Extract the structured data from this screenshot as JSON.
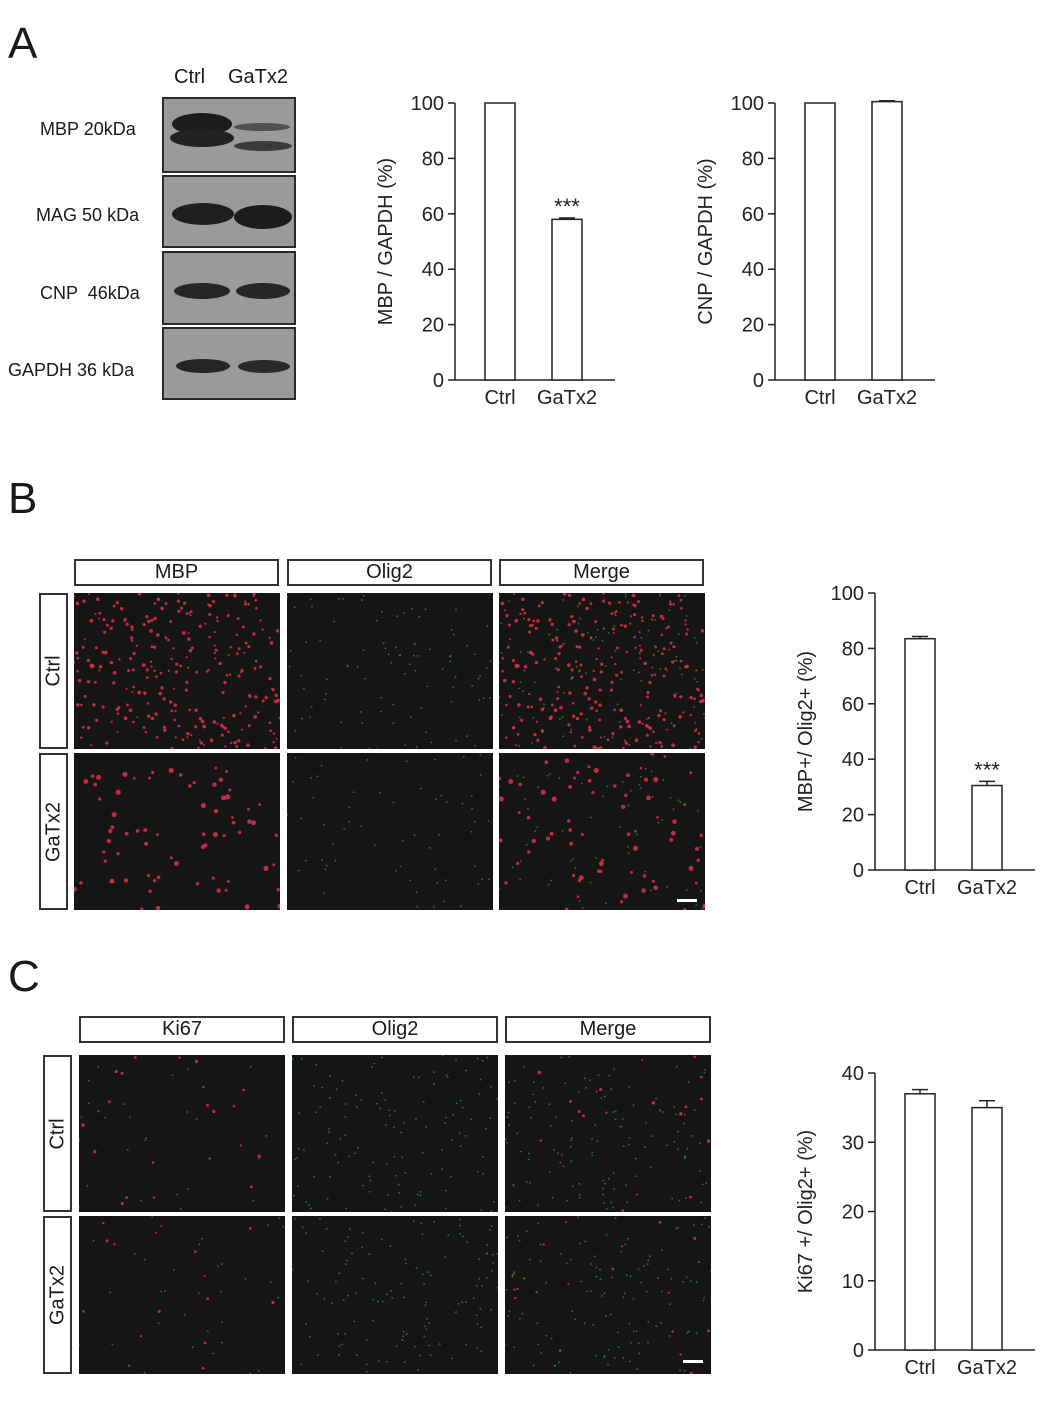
{
  "panels": {
    "a": "A",
    "b": "B",
    "c": "C"
  },
  "western_blot": {
    "lanes": [
      "Ctrl",
      "GaTx2"
    ],
    "rows": [
      {
        "protein": "MBP",
        "size": "20",
        "unit": "kDa"
      },
      {
        "protein": "MAG",
        "size": "50",
        "unit": "kDa"
      },
      {
        "protein": "CNP",
        "size": "46",
        "unit": "kDa"
      },
      {
        "protein": "GAPDH",
        "size": "36",
        "unit": "kDa"
      }
    ]
  },
  "micrographs_b": {
    "columns": [
      "MBP",
      "Olig2",
      "Merge"
    ],
    "rows": [
      "Ctrl",
      "GaTx2"
    ]
  },
  "micrographs_c": {
    "columns": [
      "Ki67",
      "Olig2",
      "Merge"
    ],
    "rows": [
      "Ctrl",
      "GaTx2"
    ]
  },
  "chart_data": [
    {
      "id": "mbp",
      "type": "bar",
      "categories": [
        "Ctrl",
        "GaTx2"
      ],
      "values": [
        100,
        58
      ],
      "errors": [
        0,
        0.5
      ],
      "annotations": [
        "",
        "***"
      ],
      "ylabel": "MBP / GAPDH (%)",
      "ylim": [
        0,
        100
      ],
      "yticks": [
        0,
        20,
        40,
        60,
        80,
        100
      ]
    },
    {
      "id": "cnp",
      "type": "bar",
      "categories": [
        "Ctrl",
        "GaTx2"
      ],
      "values": [
        100,
        100.5
      ],
      "errors": [
        0,
        0.3
      ],
      "annotations": [
        "",
        ""
      ],
      "ylabel": "CNP / GAPDH (%)",
      "ylim": [
        0,
        100
      ],
      "yticks": [
        0,
        20,
        40,
        60,
        80,
        100
      ]
    },
    {
      "id": "mbp-olig2",
      "type": "bar",
      "categories": [
        "Ctrl",
        "GaTx2"
      ],
      "values": [
        83.5,
        30.5
      ],
      "errors": [
        0.8,
        1.5
      ],
      "annotations": [
        "",
        "***"
      ],
      "ylabel": "MBP+/ Olig2+ (%)",
      "ylim": [
        0,
        100
      ],
      "yticks": [
        0,
        20,
        40,
        60,
        80,
        100
      ]
    },
    {
      "id": "ki67-olig2",
      "type": "bar",
      "categories": [
        "Ctrl",
        "GaTx2"
      ],
      "values": [
        37,
        35
      ],
      "errors": [
        0.6,
        1.0
      ],
      "annotations": [
        "",
        ""
      ],
      "ylabel": "Ki67 +/ Olig2+ (%)",
      "ylim": [
        0,
        40
      ],
      "yticks": [
        0,
        10,
        20,
        30,
        40
      ]
    }
  ]
}
